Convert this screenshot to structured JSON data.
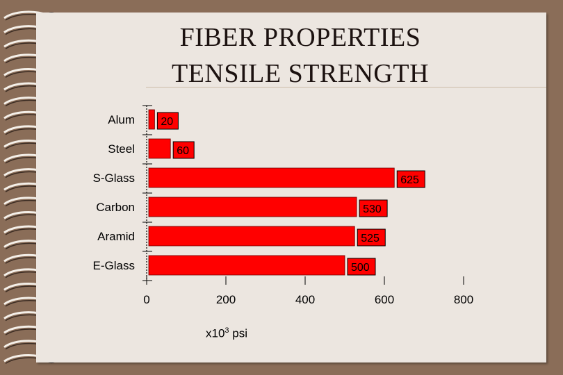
{
  "title": {
    "line1": "FIBER PROPERTIES",
    "line2": "TENSILE STRENGTH"
  },
  "x_unit": {
    "base": "x10",
    "exponent": "3",
    "suffix": " psi"
  },
  "colors": {
    "bar": "#ff0000",
    "frame": "#8a6d58",
    "page": "#ece6e0"
  },
  "chart_data": {
    "type": "bar",
    "orientation": "horizontal",
    "categories": [
      "Alum",
      "Steel",
      "S-Glass",
      "Carbon",
      "Aramid",
      "E-Glass"
    ],
    "values": [
      20,
      60,
      625,
      530,
      525,
      500
    ],
    "data_labels": [
      "20",
      "60",
      "625",
      "530",
      "525",
      "500"
    ],
    "xlim": [
      0,
      800
    ],
    "xticks": [
      0,
      200,
      400,
      600,
      800
    ],
    "xtick_labels": [
      "0",
      "200",
      "400",
      "600",
      "800"
    ],
    "grid": false
  }
}
